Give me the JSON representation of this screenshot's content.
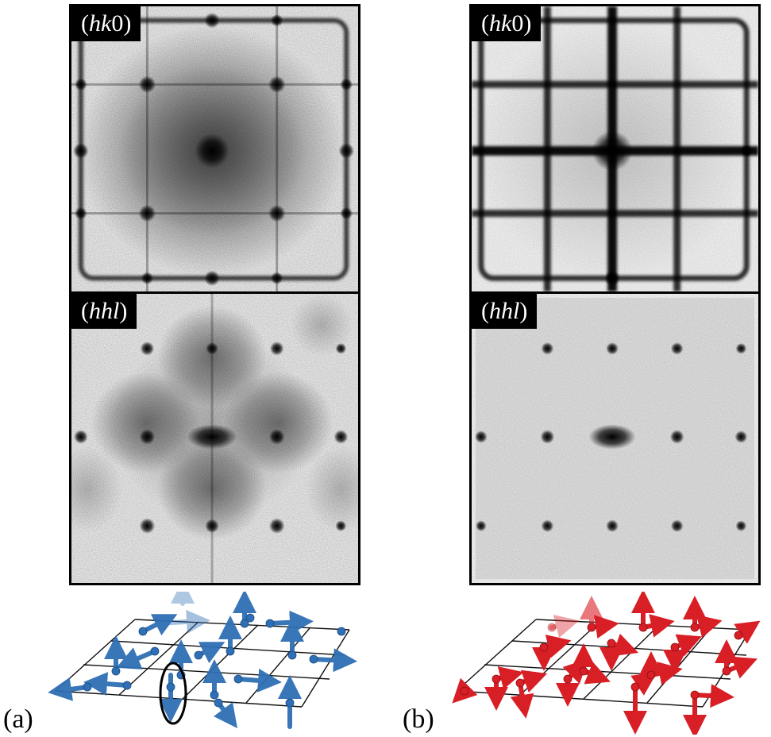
{
  "panels": {
    "a_top": {
      "label_pre": "(",
      "label_italic": "hk",
      "label_post": "0)"
    },
    "a_bottom": {
      "label_pre": "(",
      "label_italic": "hhl",
      "label_post": ")"
    },
    "b_top": {
      "label_pre": "(",
      "label_italic": "hk",
      "label_post": "0)"
    },
    "b_bottom": {
      "label_pre": "(",
      "label_italic": "hhl",
      "label_post": ")"
    }
  },
  "sublabels": {
    "a": "(a)",
    "b": "(b)"
  },
  "colors": {
    "spins_a": "#2f6fb5",
    "spins_b": "#d91f26",
    "frame": "#000000"
  }
}
